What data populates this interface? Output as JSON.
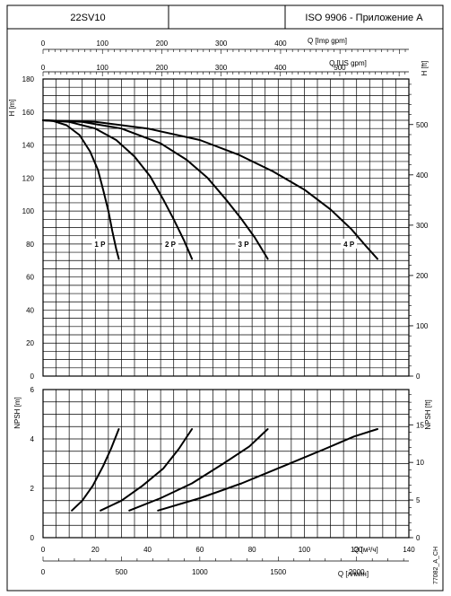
{
  "header": {
    "model": "22SV10",
    "standard": "ISO 9906 - Приложение A"
  },
  "side_code": "77082_A_CH",
  "chart_data": [
    {
      "type": "line",
      "name": "head",
      "xlabel": "Q [м³/ч]",
      "ylabel_left": "H [m]",
      "ylabel_right": "H [ft]",
      "xlim": [
        0,
        140
      ],
      "ylim": [
        0,
        180
      ],
      "x_ticks": [
        0,
        20,
        40,
        60,
        80,
        100,
        120,
        140
      ],
      "x_tick_labels": [
        "0",
        "20",
        "40",
        "60",
        "80",
        "100",
        "120",
        "140"
      ],
      "y_ticks": [
        0,
        20,
        40,
        60,
        80,
        100,
        120,
        140,
        160,
        180
      ],
      "y_tick_labels": [
        "0",
        "20",
        "40",
        "60",
        "80",
        "100",
        "120",
        "140",
        "160",
        "180"
      ],
      "right_ticks_ft": [
        0,
        100,
        200,
        300,
        400,
        500
      ],
      "grid": true,
      "series": [
        {
          "name": "1 P",
          "x": [
            0,
            4,
            9,
            14,
            18,
            21,
            23,
            25,
            26.5,
            28,
            29
          ],
          "y": [
            155,
            154.5,
            152,
            146,
            136,
            125,
            113,
            100,
            88,
            77,
            71
          ]
        },
        {
          "name": "2 P",
          "x": [
            0,
            10,
            20,
            28,
            35,
            41,
            46,
            50,
            54,
            57
          ],
          "y": [
            155,
            154,
            150,
            143,
            133,
            121,
            107,
            95,
            82,
            71
          ]
        },
        {
          "name": "3 P",
          "x": [
            0,
            15,
            30,
            45,
            55,
            63,
            70,
            76,
            81,
            86
          ],
          "y": [
            155,
            154,
            150,
            141,
            131,
            120,
            107,
            95,
            84,
            71
          ]
        },
        {
          "name": "4 P",
          "x": [
            0,
            20,
            40,
            60,
            75,
            88,
            100,
            110,
            118,
            124,
            128
          ],
          "y": [
            155,
            154,
            150,
            143,
            134,
            124,
            113,
            101,
            89,
            78,
            71
          ]
        }
      ]
    },
    {
      "type": "line",
      "name": "npsh",
      "xlabel": "Q [м³/ч]",
      "ylabel_left": "NPSH [m]",
      "ylabel_right": "NPSH [ft]",
      "xlim": [
        0,
        140
      ],
      "ylim": [
        0,
        6
      ],
      "y_ticks": [
        0,
        2,
        4,
        6
      ],
      "y_tick_labels": [
        "0",
        "2",
        "4",
        "6"
      ],
      "right_ticks_ft": [
        0,
        5,
        10,
        15
      ],
      "grid": true,
      "series": [
        {
          "name": "1 P",
          "x": [
            11,
            15,
            19,
            23,
            26,
            29
          ],
          "y": [
            1.1,
            1.5,
            2.1,
            2.9,
            3.6,
            4.4
          ]
        },
        {
          "name": "2 P",
          "x": [
            22,
            30,
            38,
            46,
            52,
            57
          ],
          "y": [
            1.1,
            1.5,
            2.1,
            2.8,
            3.6,
            4.4
          ]
        },
        {
          "name": "3 P",
          "x": [
            33,
            45,
            57,
            69,
            79,
            86
          ],
          "y": [
            1.1,
            1.6,
            2.2,
            3.0,
            3.7,
            4.4
          ]
        },
        {
          "name": "4 P",
          "x": [
            44,
            60,
            76,
            92,
            108,
            119,
            128
          ],
          "y": [
            1.1,
            1.6,
            2.2,
            2.9,
            3.6,
            4.1,
            4.4
          ]
        }
      ]
    }
  ],
  "top_axis_imp": {
    "label": "Q [Imp gpm]",
    "ticks": [
      0,
      100,
      200,
      300,
      400
    ],
    "tick_labels": [
      "0",
      "100",
      "200",
      "300",
      "400"
    ],
    "factor": 0.22727
  },
  "top_axis_us": {
    "label": "Q [US gpm]",
    "ticks": [
      0,
      100,
      200,
      300,
      400,
      500
    ],
    "tick_labels": [
      "0",
      "100",
      "200",
      "300",
      "400",
      "500"
    ],
    "factor": 0.22712
  },
  "bottom_axis_lmin": {
    "label": "Q [л/мин]",
    "ticks": [
      0,
      500,
      1000,
      1500,
      2000
    ],
    "tick_labels": [
      "0",
      "500",
      "1000",
      "1500",
      "2000"
    ],
    "factor": 0.06
  }
}
